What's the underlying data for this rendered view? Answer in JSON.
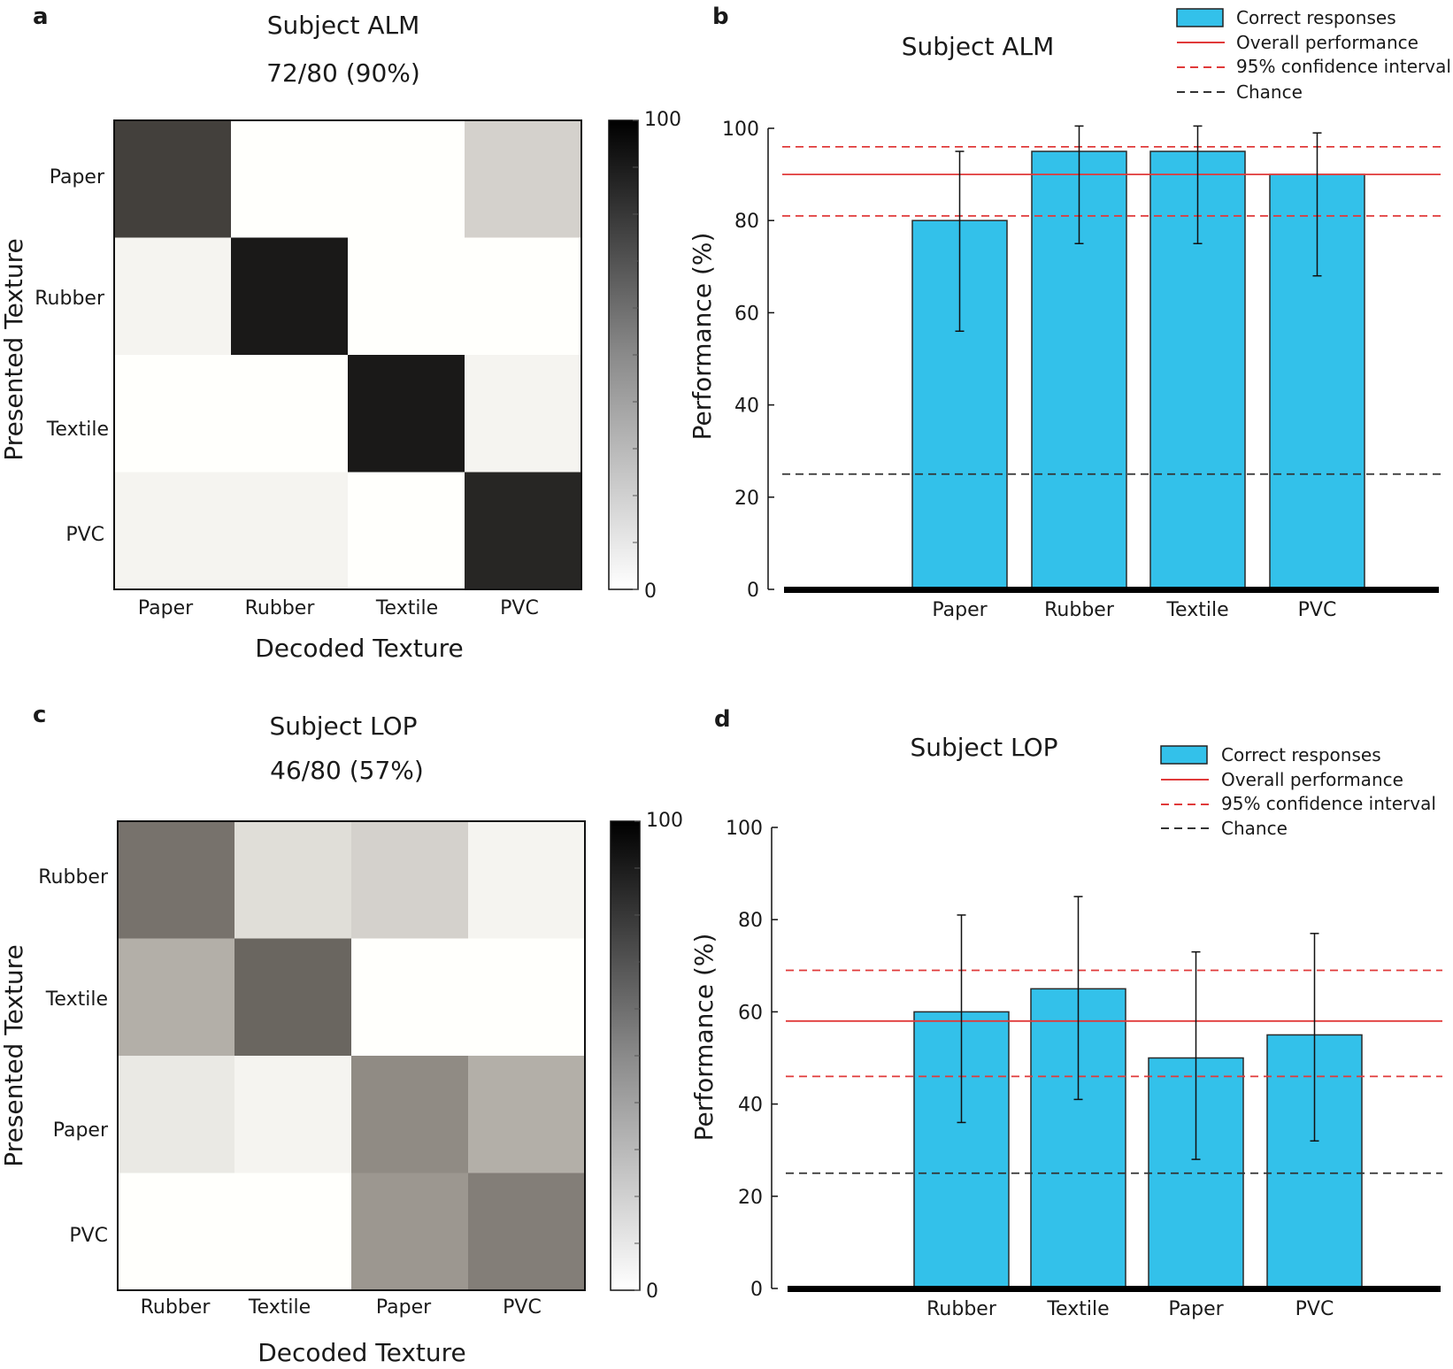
{
  "chart_data": [
    {
      "panel": "a",
      "type": "heatmap",
      "title": "Subject ALM",
      "subtitle": "72/80 (90%)",
      "xlabel": "Decoded Texture",
      "ylabel": "Presented Texture",
      "x_categories": [
        "Paper",
        "Rubber",
        "Textile",
        "PVC"
      ],
      "y_categories": [
        "Paper",
        "Rubber",
        "Textile",
        "PVC"
      ],
      "values": [
        [
          80,
          0,
          0,
          20
        ],
        [
          5,
          95,
          0,
          0
        ],
        [
          0,
          0,
          95,
          5
        ],
        [
          5,
          5,
          0,
          90
        ]
      ],
      "colorbar": {
        "min": 0,
        "max": 100,
        "min_label": "0",
        "max_label": "100"
      }
    },
    {
      "panel": "b",
      "type": "bar",
      "title": "Subject ALM",
      "xlabel": "",
      "ylabel": "Performance  (%)",
      "ylim": [
        0,
        100
      ],
      "yticks": [
        0,
        20,
        40,
        60,
        80,
        100
      ],
      "categories": [
        "Paper",
        "Rubber",
        "Textile",
        "PVC"
      ],
      "values": [
        80,
        95,
        95,
        90
      ],
      "error_low": [
        56,
        75,
        75,
        68
      ],
      "error_high": [
        95,
        100.5,
        100.5,
        99
      ],
      "overall_performance": 90,
      "ci": [
        81,
        96
      ],
      "chance": 25,
      "legend": [
        "Correct responses",
        "Overall performance",
        "95% confidence interval",
        "Chance"
      ],
      "legend_position": "top-right"
    },
    {
      "panel": "c",
      "type": "heatmap",
      "title": "Subject LOP",
      "subtitle": "46/80 (57%)",
      "xlabel": "Decoded Texture",
      "ylabel": "Presented Texture",
      "x_categories": [
        "Rubber",
        "Textile",
        "Paper",
        "PVC"
      ],
      "y_categories": [
        "Rubber",
        "Textile",
        "Paper",
        "PVC"
      ],
      "values": [
        [
          60,
          15,
          20,
          5
        ],
        [
          35,
          65,
          0,
          0
        ],
        [
          10,
          5,
          50,
          35
        ],
        [
          0,
          0,
          45,
          55
        ]
      ],
      "colorbar": {
        "min": 0,
        "max": 100,
        "min_label": "0",
        "max_label": "100"
      }
    },
    {
      "panel": "d",
      "type": "bar",
      "title": "Subject LOP",
      "xlabel": "",
      "ylabel": "Performance  (%)",
      "ylim": [
        0,
        100
      ],
      "yticks": [
        0,
        20,
        40,
        60,
        80,
        100
      ],
      "categories": [
        "Rubber",
        "Textile",
        "Paper",
        "PVC"
      ],
      "values": [
        60,
        65,
        50,
        55
      ],
      "error_low": [
        36,
        41,
        28,
        32
      ],
      "error_high": [
        81,
        85,
        73,
        77
      ],
      "overall_performance": 58,
      "ci": [
        46,
        69
      ],
      "chance": 25,
      "legend": [
        "Correct responses",
        "Overall performance",
        "95% confidence interval",
        "Chance"
      ],
      "legend_position": "top-right"
    }
  ],
  "colors": {
    "bar_fill": "#33c1ea",
    "bar_stroke": "#2a2a2a",
    "overall_line": "#e03a3a",
    "ci_line": "#e03a3a",
    "chance_line": "#333333",
    "axis_thick": "#000000"
  }
}
